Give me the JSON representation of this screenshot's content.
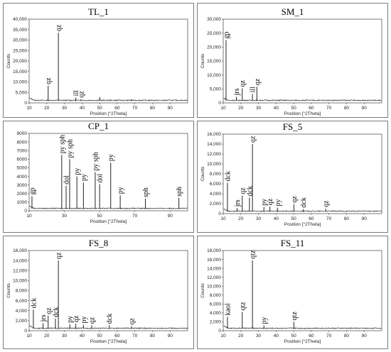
{
  "chart_data": [
    {
      "type": "line",
      "title": "TL_1",
      "xlabel": "Position [°2Theta]",
      "ylabel": "Counts",
      "xlim": [
        10,
        100
      ],
      "ylim": [
        0,
        40000
      ],
      "xticks": [
        "10",
        "20",
        "30",
        "40",
        "50",
        "60",
        "70",
        "80",
        "90"
      ],
      "yticks": [
        "0",
        "5,000",
        "10,000",
        "15,000",
        "20,000",
        "25,000",
        "30,000",
        "35,000",
        "40,000"
      ],
      "peaks": [
        {
          "x": 20.8,
          "y": 8200,
          "label": "qz"
        },
        {
          "x": 26.6,
          "y": 33500,
          "label": "qz"
        },
        {
          "x": 36.5,
          "y": 2600,
          "label": "ill"
        },
        {
          "x": 39.4,
          "y": 1800,
          "label": "qz"
        },
        {
          "x": 50.1,
          "y": 2800,
          "label": ""
        },
        {
          "x": 60.0,
          "y": 1500,
          "label": ""
        },
        {
          "x": 68.2,
          "y": 1700,
          "label": ""
        }
      ]
    },
    {
      "type": "line",
      "title": "SM_1",
      "xlabel": "Position [°2Theta]",
      "ylabel": "Counts",
      "xlim": [
        10,
        100
      ],
      "ylim": [
        0,
        30000
      ],
      "xticks": [
        "10",
        "20",
        "30",
        "40",
        "50",
        "60",
        "70",
        "80",
        "90"
      ],
      "yticks": [
        "0",
        "5,000",
        "10,000",
        "15,000",
        "20,000",
        "25,000",
        "30,000"
      ],
      "peaks": [
        {
          "x": 11.6,
          "y": 22500,
          "label": "gp"
        },
        {
          "x": 17.5,
          "y": 2200,
          "label": "jrs"
        },
        {
          "x": 20.8,
          "y": 5200,
          "label": "qz"
        },
        {
          "x": 26.6,
          "y": 3200,
          "label": "ill"
        },
        {
          "x": 29.1,
          "y": 5800,
          "label": "qz"
        },
        {
          "x": 45.5,
          "y": 1100,
          "label": ""
        }
      ]
    },
    {
      "type": "line",
      "title": "CP_1",
      "xlabel": "Position [°2Theta]",
      "ylabel": "",
      "xlim": [
        10,
        100
      ],
      "ylim": [
        0,
        9000
      ],
      "xticks": [
        "10",
        "30",
        "50",
        "70",
        "90"
      ],
      "yticks": [
        "0",
        "1000",
        "2000",
        "3000",
        "4000",
        "5000",
        "6000",
        "7000",
        "8000",
        "9000"
      ],
      "peaks": [
        {
          "x": 11.6,
          "y": 1700,
          "label": "gp"
        },
        {
          "x": 28.5,
          "y": 6500,
          "label": "py sph"
        },
        {
          "x": 31.0,
          "y": 2900,
          "label": "dol"
        },
        {
          "x": 33.0,
          "y": 6000,
          "label": "py sph"
        },
        {
          "x": 37.1,
          "y": 4000,
          "label": "py"
        },
        {
          "x": 40.8,
          "y": 3300,
          "label": "py"
        },
        {
          "x": 47.5,
          "y": 4500,
          "label": "py sph"
        },
        {
          "x": 50.0,
          "y": 3100,
          "label": "dol"
        },
        {
          "x": 56.3,
          "y": 5600,
          "label": "py"
        },
        {
          "x": 61.7,
          "y": 1800,
          "label": "py"
        },
        {
          "x": 76.0,
          "y": 1400,
          "label": "sph"
        },
        {
          "x": 95.0,
          "y": 1500,
          "label": "sph"
        }
      ]
    },
    {
      "type": "line",
      "title": "FS_5",
      "xlabel": "Position [°2Theta]",
      "ylabel": "Counts",
      "xlim": [
        10,
        100
      ],
      "ylim": [
        0,
        16000
      ],
      "xticks": [
        "10",
        "20",
        "30",
        "40",
        "50",
        "60",
        "70",
        "80",
        "90"
      ],
      "yticks": [
        "0",
        "2,000",
        "4,000",
        "6,000",
        "8,000",
        "10,000",
        "12,000",
        "14,000",
        "16,000"
      ],
      "peaks": [
        {
          "x": 12.4,
          "y": 6200,
          "label": "dck"
        },
        {
          "x": 17.9,
          "y": 1100,
          "label": "jrs"
        },
        {
          "x": 20.8,
          "y": 3600,
          "label": "qz"
        },
        {
          "x": 24.9,
          "y": 3200,
          "label": "dck"
        },
        {
          "x": 26.6,
          "y": 14000,
          "label": "qz"
        },
        {
          "x": 33.1,
          "y": 1300,
          "label": "py"
        },
        {
          "x": 36.5,
          "y": 1400,
          "label": "qz"
        },
        {
          "x": 40.8,
          "y": 1200,
          "label": "py"
        },
        {
          "x": 50.1,
          "y": 1900,
          "label": "qz"
        },
        {
          "x": 55.5,
          "y": 900,
          "label": "dck"
        },
        {
          "x": 68.2,
          "y": 1000,
          "label": "qz"
        }
      ]
    },
    {
      "type": "line",
      "title": "FS_8",
      "xlabel": "Position [°2Theta]",
      "ylabel": "Counts",
      "xlim": [
        10,
        100
      ],
      "ylim": [
        0,
        16000
      ],
      "xticks": [
        "10",
        "20",
        "30",
        "40",
        "50",
        "60",
        "70",
        "80",
        "90"
      ],
      "yticks": [
        "0",
        "2,000",
        "4,000",
        "6,000",
        "8,000",
        "10,000",
        "12,000",
        "14,000",
        "16,000"
      ],
      "peaks": [
        {
          "x": 12.4,
          "y": 4200,
          "label": "dck"
        },
        {
          "x": 17.9,
          "y": 1500,
          "label": "jrs"
        },
        {
          "x": 20.8,
          "y": 3000,
          "label": "qz"
        },
        {
          "x": 24.9,
          "y": 2400,
          "label": "dck"
        },
        {
          "x": 26.6,
          "y": 14000,
          "label": "qz"
        },
        {
          "x": 33.1,
          "y": 1300,
          "label": "py"
        },
        {
          "x": 36.5,
          "y": 1400,
          "label": "qz"
        },
        {
          "x": 40.8,
          "y": 1200,
          "label": "py"
        },
        {
          "x": 45.5,
          "y": 1100,
          "label": "qz"
        },
        {
          "x": 55.5,
          "y": 1100,
          "label": "dck"
        },
        {
          "x": 68.2,
          "y": 900,
          "label": "qz"
        }
      ]
    },
    {
      "type": "line",
      "title": "FS_11",
      "xlabel": "Position [°2Theta]",
      "ylabel": "Counts",
      "xlim": [
        10,
        100
      ],
      "ylim": [
        0,
        18000
      ],
      "xticks": [
        "10",
        "20",
        "30",
        "40",
        "50",
        "60",
        "70",
        "80",
        "90"
      ],
      "yticks": [
        "0",
        "2,000",
        "4,000",
        "6,000",
        "8,000",
        "10,000",
        "12,000",
        "14,000",
        "16,000",
        "18,000"
      ],
      "peaks": [
        {
          "x": 12.4,
          "y": 3100,
          "label": "kaol"
        },
        {
          "x": 20.8,
          "y": 4200,
          "label": "qtz"
        },
        {
          "x": 26.6,
          "y": 15800,
          "label": "qtz"
        },
        {
          "x": 33.1,
          "y": 1200,
          "label": "py"
        },
        {
          "x": 50.1,
          "y": 2000,
          "label": "qtz"
        }
      ]
    }
  ]
}
